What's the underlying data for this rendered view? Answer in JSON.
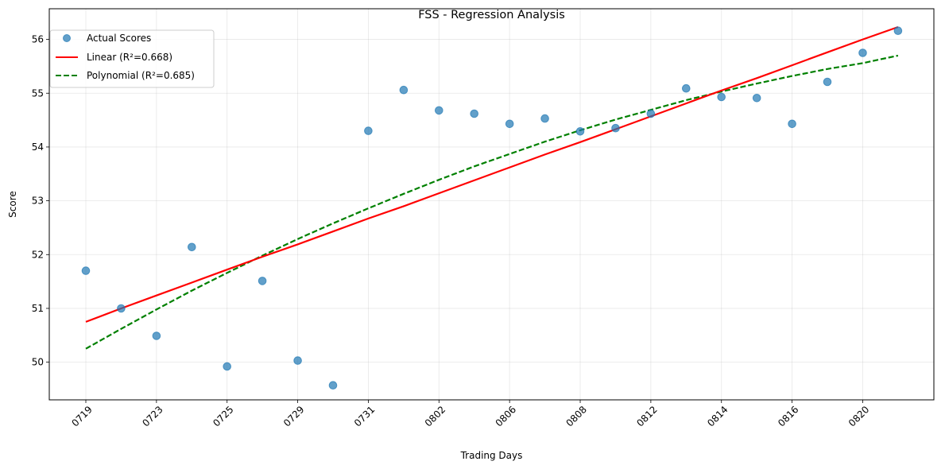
{
  "chart_data": {
    "type": "scatter",
    "title": "FSS - Regression Analysis",
    "xlabel": "Trading Days",
    "ylabel": "Score",
    "x_tick_labels": [
      "0719",
      "0723",
      "0725",
      "0729",
      "0731",
      "0802",
      "0806",
      "0808",
      "0812",
      "0814",
      "0816",
      "0820"
    ],
    "y_ticks": [
      50,
      51,
      52,
      53,
      54,
      55,
      56
    ],
    "ylim": [
      49.3,
      56.57
    ],
    "grid": true,
    "legend_position": "top-left",
    "series": [
      {
        "name": "Actual Scores",
        "kind": "scatter",
        "color": "#1f77b4",
        "values": [
          51.7,
          51.0,
          50.49,
          52.14,
          49.92,
          51.51,
          50.03,
          49.57,
          54.3,
          55.06,
          54.68,
          54.62,
          54.43,
          54.53,
          54.29,
          54.35,
          54.62,
          55.09,
          54.93,
          54.91,
          54.43,
          55.21,
          55.75,
          56.16
        ]
      },
      {
        "name": "Linear (R²=0.668)",
        "kind": "line",
        "color": "#ff0000",
        "dash": "solid",
        "values": [
          50.75,
          51.0,
          51.24,
          51.48,
          51.72,
          51.96,
          52.19,
          52.43,
          52.67,
          52.9,
          53.14,
          53.38,
          53.62,
          53.86,
          54.09,
          54.33,
          54.57,
          54.81,
          55.05,
          55.28,
          55.52,
          55.76,
          56.0,
          56.23
        ]
      },
      {
        "name": "Polynomial (R²=0.685)",
        "kind": "line",
        "color": "#008000",
        "dash": "dashed",
        "values": [
          50.25,
          50.62,
          50.98,
          51.33,
          51.66,
          51.98,
          52.29,
          52.58,
          52.86,
          53.13,
          53.39,
          53.64,
          53.87,
          54.1,
          54.31,
          54.51,
          54.69,
          54.87,
          55.03,
          55.18,
          55.32,
          55.45,
          55.56,
          55.7
        ]
      }
    ]
  }
}
